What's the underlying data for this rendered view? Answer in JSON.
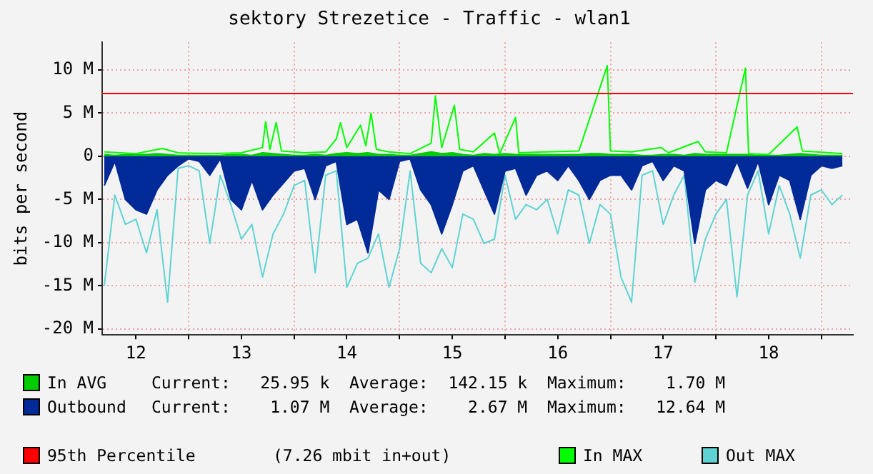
{
  "chart_data": {
    "type": "area",
    "title": "sektory Strezetice - Traffic - wlan1",
    "ylabel": "bits per second",
    "xlim": [
      12.18,
      19.3
    ],
    "xticks": [
      {
        "value": 12.5,
        "label": "12"
      },
      {
        "value": 13,
        "label": null
      },
      {
        "value": 13.5,
        "label": "13"
      },
      {
        "value": 14,
        "label": null
      },
      {
        "value": 14.5,
        "label": "14"
      },
      {
        "value": 15,
        "label": null
      },
      {
        "value": 15.5,
        "label": "15"
      },
      {
        "value": 16,
        "label": null
      },
      {
        "value": 16.5,
        "label": "16"
      },
      {
        "value": 17,
        "label": null
      },
      {
        "value": 17.5,
        "label": "17"
      },
      {
        "value": 18,
        "label": null
      },
      {
        "value": 18.5,
        "label": "18"
      },
      {
        "value": 19,
        "label": null
      }
    ],
    "ylim": [
      -20.7,
      13.2
    ],
    "yticks": [
      {
        "value": -20,
        "label": "-20 M"
      },
      {
        "value": -15,
        "label": "-15 M"
      },
      {
        "value": -10,
        "label": "-10 M"
      },
      {
        "value": -5,
        "label": "-5 M"
      },
      0,
      {
        "value": 5,
        "label": "5 M"
      },
      {
        "value": 10,
        "label": "10 M"
      }
    ],
    "grid": true,
    "legend": "bottom",
    "series": [
      {
        "name": "In AVG",
        "color": "#00cc00",
        "x": [
          12.2,
          12.3,
          12.4,
          12.5,
          12.6,
          12.7,
          12.8,
          12.9,
          13.0,
          13.1,
          13.2,
          13.3,
          13.4,
          13.5,
          13.6,
          13.7,
          13.8,
          13.9,
          14.0,
          14.1,
          14.2,
          14.3,
          14.4,
          14.5,
          14.6,
          14.7,
          14.8,
          14.9,
          15.0,
          15.1,
          15.2,
          15.3,
          15.4,
          15.5,
          15.6,
          15.7,
          15.8,
          15.9,
          16.0,
          16.1,
          16.2,
          16.3,
          16.4,
          16.5,
          16.6,
          16.7,
          16.8,
          16.9,
          17.0,
          17.1,
          17.2,
          17.3,
          17.4,
          17.5,
          17.6,
          17.7,
          17.8,
          17.9,
          18.0,
          18.1,
          18.2,
          18.3,
          18.4,
          18.5,
          18.6,
          18.7,
          18.8,
          18.9,
          19.0,
          19.1,
          19.2
        ],
        "values": [
          0.2,
          0.1,
          0.2,
          0.2,
          0.2,
          0.3,
          0.2,
          0.1,
          0.1,
          0.1,
          0.1,
          0.1,
          0.2,
          0.2,
          0.1,
          0.4,
          0.3,
          0.2,
          0.1,
          0.1,
          0.2,
          0.1,
          0.3,
          0.4,
          0.3,
          0.4,
          0.2,
          0.2,
          0.1,
          0.1,
          0.3,
          0.5,
          0.3,
          0.4,
          0.2,
          0.1,
          0.3,
          0.2,
          0.3,
          0.2,
          0.2,
          0.2,
          0.2,
          0.2,
          0.2,
          0.2,
          0.3,
          0.3,
          0.2,
          0.2,
          0.2,
          0.1,
          0.1,
          0.2,
          0.2,
          0.1,
          0.3,
          0.2,
          0.2,
          0.2,
          0.2,
          0.2,
          0.1,
          0.1,
          0.1,
          0.2,
          0.3,
          0.2,
          0.1,
          0.1,
          0.1
        ]
      },
      {
        "name": "Outbound",
        "color": "#002a97",
        "x": [
          12.2,
          12.3,
          12.4,
          12.5,
          12.6,
          12.7,
          12.8,
          12.9,
          13.0,
          13.1,
          13.2,
          13.3,
          13.4,
          13.5,
          13.6,
          13.7,
          13.8,
          13.9,
          14.0,
          14.1,
          14.2,
          14.3,
          14.4,
          14.5,
          14.6,
          14.7,
          14.8,
          14.9,
          15.0,
          15.1,
          15.2,
          15.3,
          15.4,
          15.5,
          15.6,
          15.7,
          15.8,
          15.9,
          16.0,
          16.1,
          16.2,
          16.3,
          16.4,
          16.5,
          16.6,
          16.7,
          16.8,
          16.9,
          17.0,
          17.1,
          17.2,
          17.3,
          17.4,
          17.5,
          17.6,
          17.7,
          17.8,
          17.9,
          18.0,
          18.1,
          18.2,
          18.3,
          18.4,
          18.5,
          18.6,
          18.7,
          18.8,
          18.9,
          19.0,
          19.1,
          19.2
        ],
        "values": [
          -3.4,
          -0.6,
          -5,
          -6.2,
          -6.7,
          -3.9,
          -2.2,
          -1.1,
          -0.3,
          -0.6,
          -2.2,
          -0.3,
          -5,
          -6.2,
          -2.8,
          -6.2,
          -4.5,
          -3.1,
          -1.7,
          -1.4,
          -5,
          -1.1,
          -0.6,
          -7.9,
          -7.3,
          -11.2,
          -3.9,
          -5,
          -0.6,
          -0.3,
          -3.9,
          -5.6,
          -9,
          -5.6,
          -1.7,
          -1.1,
          -3.9,
          -6.7,
          -1.7,
          -1.4,
          -4.5,
          -2.2,
          -1.7,
          -2.8,
          -1.1,
          -2.8,
          -5,
          -2.8,
          -2.2,
          -2.2,
          -3.9,
          -1.1,
          -0.6,
          -2.8,
          -1.1,
          -1.7,
          -10.1,
          -3.9,
          -2.8,
          -3.4,
          -0.6,
          -3.7,
          -0.6,
          -5.6,
          -2.2,
          -2.8,
          -7.3,
          -2.2,
          -1.1,
          -1.4,
          -1.1
        ]
      },
      {
        "name": "In MAX",
        "type": "line",
        "color": "#00ff00",
        "x": [
          12.2,
          12.5,
          12.75,
          12.9,
          13.2,
          13.5,
          13.7,
          13.73,
          13.77,
          13.83,
          13.88,
          14.1,
          14.3,
          14.4,
          14.44,
          14.5,
          14.63,
          14.68,
          14.73,
          14.78,
          14.9,
          15.1,
          15.3,
          15.34,
          15.4,
          15.52,
          15.57,
          15.7,
          15.9,
          15.95,
          16.1,
          16.13,
          16.4,
          16.7,
          16.97,
          17.0,
          17.2,
          17.48,
          17.55,
          17.83,
          17.9,
          18.1,
          18.28,
          18.31,
          18.5,
          18.77,
          18.82,
          18.95,
          19.2
        ],
        "values": [
          0.5,
          0.3,
          0.9,
          0.4,
          0.3,
          0.4,
          1.0,
          4.0,
          0.8,
          3.9,
          0.6,
          0.4,
          0.5,
          2.0,
          3.9,
          1.0,
          3.6,
          1.2,
          5.0,
          0.8,
          0.5,
          0.3,
          1.5,
          7.0,
          1.0,
          5.9,
          0.8,
          0.5,
          2.7,
          0.3,
          4.5,
          0.4,
          0.5,
          0.6,
          10.5,
          0.6,
          0.5,
          1.0,
          0.4,
          1.7,
          0.5,
          0.4,
          10.2,
          0.3,
          0.2,
          3.4,
          0.6,
          0.5,
          0.3
        ]
      },
      {
        "name": "Out MAX",
        "type": "line",
        "color": "#5fd3d3",
        "x": [
          12.2,
          12.3,
          12.4,
          12.5,
          12.6,
          12.7,
          12.8,
          12.9,
          13.0,
          13.1,
          13.2,
          13.3,
          13.4,
          13.5,
          13.6,
          13.7,
          13.8,
          13.9,
          14.0,
          14.1,
          14.2,
          14.3,
          14.4,
          14.5,
          14.6,
          14.7,
          14.8,
          14.9,
          15.0,
          15.1,
          15.2,
          15.3,
          15.4,
          15.5,
          15.6,
          15.7,
          15.8,
          15.9,
          16.0,
          16.1,
          16.2,
          16.3,
          16.4,
          16.5,
          16.6,
          16.7,
          16.8,
          16.9,
          17.0,
          17.1,
          17.2,
          17.3,
          17.4,
          17.5,
          17.6,
          17.7,
          17.8,
          17.9,
          18.0,
          18.1,
          18.2,
          18.3,
          18.4,
          18.5,
          18.6,
          18.7,
          18.8,
          18.9,
          19.0,
          19.1,
          19.2
        ],
        "values": [
          -15,
          -4.5,
          -7.9,
          -7.3,
          -11.2,
          -6.2,
          -16.9,
          -1.4,
          -1.1,
          -1.7,
          -10.1,
          -2.2,
          -5.6,
          -9.6,
          -7.9,
          -14,
          -9,
          -6.7,
          -3.4,
          -2.8,
          -13.5,
          -2.2,
          -1.7,
          -15.2,
          -12.4,
          -11.8,
          -9,
          -15.2,
          -10.7,
          -1.7,
          -12.4,
          -13.5,
          -10.7,
          -12.9,
          -6.7,
          -7.3,
          -10.1,
          -9.6,
          -2.2,
          -7.3,
          -5.6,
          -6.2,
          -5,
          -9,
          -3.9,
          -4.5,
          -10.1,
          -5.6,
          -6.7,
          -14,
          -16.9,
          -2.2,
          -1.7,
          -7.9,
          -4.5,
          -2.2,
          -14.6,
          -9.6,
          -6.7,
          -5,
          -16.3,
          -4.5,
          -1.7,
          -9,
          -3.4,
          -6.7,
          -11.8,
          -4.5,
          -3.9,
          -5.6,
          -4.5
        ]
      }
    ],
    "ref_lines": [
      {
        "axis": "y",
        "value": 7.26,
        "label": "95th Percentile",
        "color": "#ff0000"
      }
    ],
    "annotations": [
      "Current:   25.95 k  Average:  142.15 k  Maximum:    1.70 M",
      "Current:    1.07 M  Average:    2.67 M  Maximum:   12.64 M",
      "(7.26 mbit in+out)"
    ]
  }
}
